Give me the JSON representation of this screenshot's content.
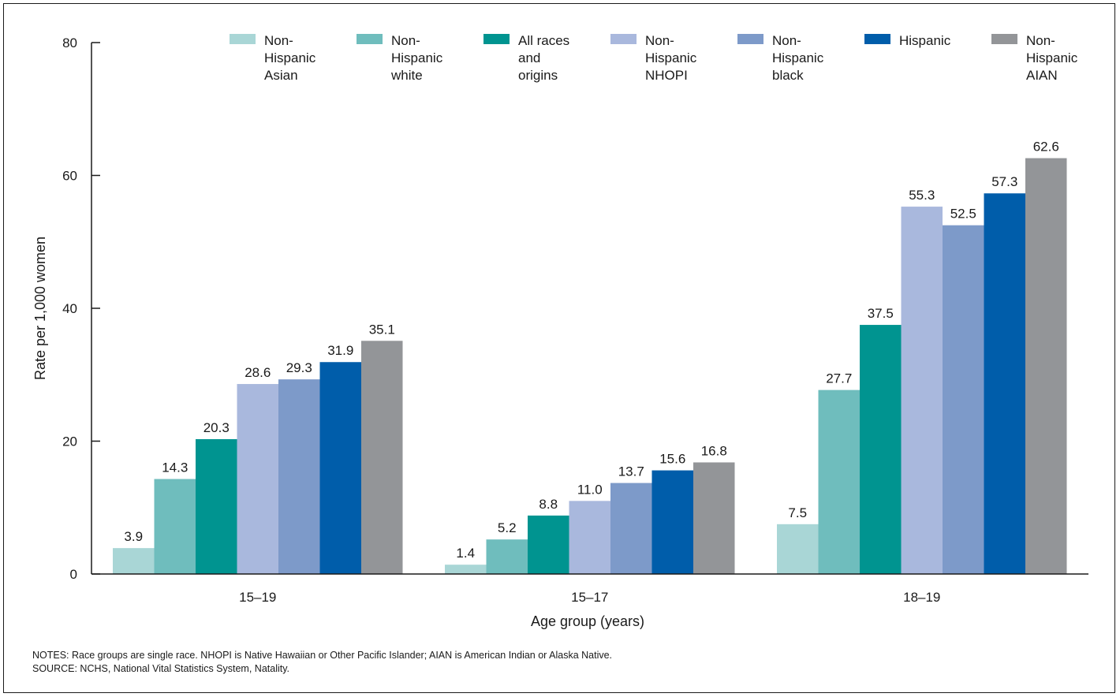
{
  "chart_data": {
    "type": "bar",
    "categories": [
      "15–19",
      "15–17",
      "18–19"
    ],
    "series": [
      {
        "name": "Non- Hispanic Asian",
        "legend_lines": [
          "Non-",
          "Hispanic",
          "Asian"
        ],
        "color": "#a9d6d6",
        "values": [
          3.9,
          1.4,
          7.5
        ]
      },
      {
        "name": "Non- Hispanic white",
        "legend_lines": [
          "Non-",
          "Hispanic",
          "white"
        ],
        "color": "#6fbdbd",
        "values": [
          14.3,
          5.2,
          27.7
        ]
      },
      {
        "name": "All races and origins",
        "legend_lines": [
          "All races",
          "and",
          "origins"
        ],
        "color": "#009490",
        "values": [
          20.3,
          8.8,
          37.5
        ]
      },
      {
        "name": "Non- Hispanic NHOPI",
        "legend_lines": [
          "Non-",
          "Hispanic",
          "NHOPI"
        ],
        "color": "#a9b8dd",
        "values": [
          28.6,
          11.0,
          55.3
        ]
      },
      {
        "name": "Non- Hispanic black",
        "legend_lines": [
          "Non-",
          "Hispanic",
          "black"
        ],
        "color": "#7d9ac9",
        "values": [
          29.3,
          13.7,
          52.5
        ]
      },
      {
        "name": "Hispanic",
        "legend_lines": [
          "Hispanic"
        ],
        "color": "#005daa",
        "values": [
          31.9,
          15.6,
          57.3
        ]
      },
      {
        "name": "Non- Hispanic AIAN",
        "legend_lines": [
          "Non-",
          "Hispanic",
          "AIAN"
        ],
        "color": "#939598",
        "values": [
          35.1,
          16.8,
          62.6
        ]
      }
    ],
    "value_labels": [
      [
        "3.9",
        "1.4",
        "7.5"
      ],
      [
        "14.3",
        "5.2",
        "27.7"
      ],
      [
        "20.3",
        "8.8",
        "37.5"
      ],
      [
        "28.6",
        "11.0",
        "55.3"
      ],
      [
        "29.3",
        "13.7",
        "52.5"
      ],
      [
        "31.9",
        "15.6",
        "57.3"
      ],
      [
        "35.1",
        "16.8",
        "62.6"
      ]
    ],
    "xlabel": "Age group (years)",
    "ylabel": "Rate per 1,000 women",
    "ylim": [
      0,
      80
    ],
    "yticks": [
      "0",
      "20",
      "40",
      "60",
      "80"
    ],
    "ytick_values": [
      0,
      20,
      40,
      60,
      80
    ],
    "grid": false,
    "legend_position": "top"
  },
  "notes": "NOTES: Race groups are single race. NHOPI is Native Hawaiian or Other Pacific Islander; AIAN is American Indian or Alaska Native.",
  "source": "SOURCE: NCHS, National Vital Statistics System, Natality."
}
